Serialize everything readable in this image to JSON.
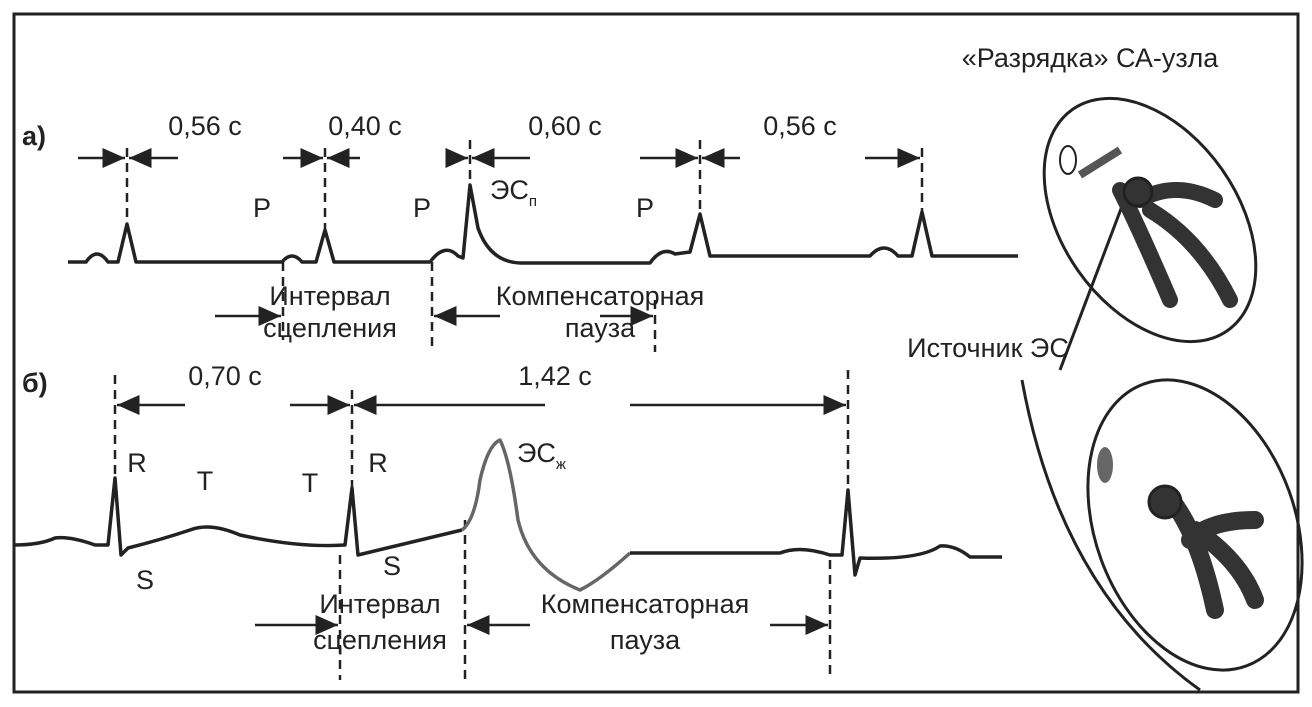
{
  "header": {
    "title": "«Разрядка» СА-узла"
  },
  "panel_a": {
    "label": "а)",
    "intervals": [
      "0,56 с",
      "0,40 с",
      "0,60 с",
      "0,56 с"
    ],
    "waves": [
      "P",
      "P",
      "P"
    ],
    "extrasystole": {
      "text": "ЭС",
      "sub": "п"
    },
    "coupling": [
      "Интервал",
      "сцепления"
    ],
    "pause": [
      "Компенсаторная",
      "пауза"
    ]
  },
  "panel_b": {
    "label": "б)",
    "intervals": [
      "0,70 с",
      "1,42 с"
    ],
    "waves": [
      "R",
      "T",
      "T",
      "R",
      "S",
      "S"
    ],
    "extrasystole": {
      "text": "ЭС",
      "sub": "ж"
    },
    "coupling": [
      "Интервал",
      "сцепления"
    ],
    "pause": [
      "Компенсаторная",
      "пауза"
    ]
  },
  "heart": {
    "source": "Источник ЭС"
  }
}
